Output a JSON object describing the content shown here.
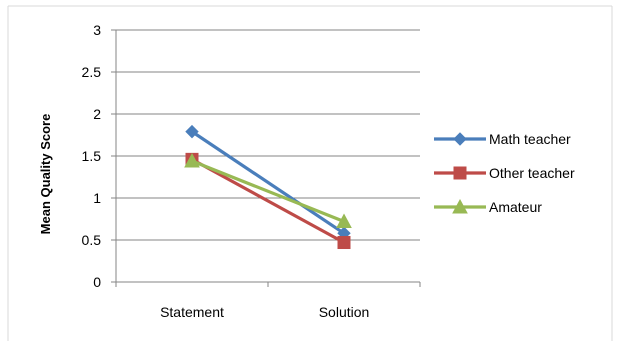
{
  "chart_data": {
    "type": "line",
    "title": "",
    "xlabel": "",
    "ylabel": "Mean Quality Score",
    "categories": [
      "Statement",
      "Solution"
    ],
    "y_ticks": [
      "0",
      "0.5",
      "1",
      "1.5",
      "2",
      "2.5",
      "3"
    ],
    "ylim": [
      0,
      3
    ],
    "grid": "horizontal",
    "legend_position": "right",
    "series": [
      {
        "name": "Math teacher",
        "values": [
          1.79,
          0.58
        ],
        "color": "#4a7ebb",
        "marker": "diamond"
      },
      {
        "name": "Other teacher",
        "values": [
          1.46,
          0.47
        ],
        "color": "#be4b48",
        "marker": "square"
      },
      {
        "name": "Amateur",
        "values": [
          1.44,
          0.72
        ],
        "color": "#98b954",
        "marker": "triangle"
      }
    ]
  }
}
